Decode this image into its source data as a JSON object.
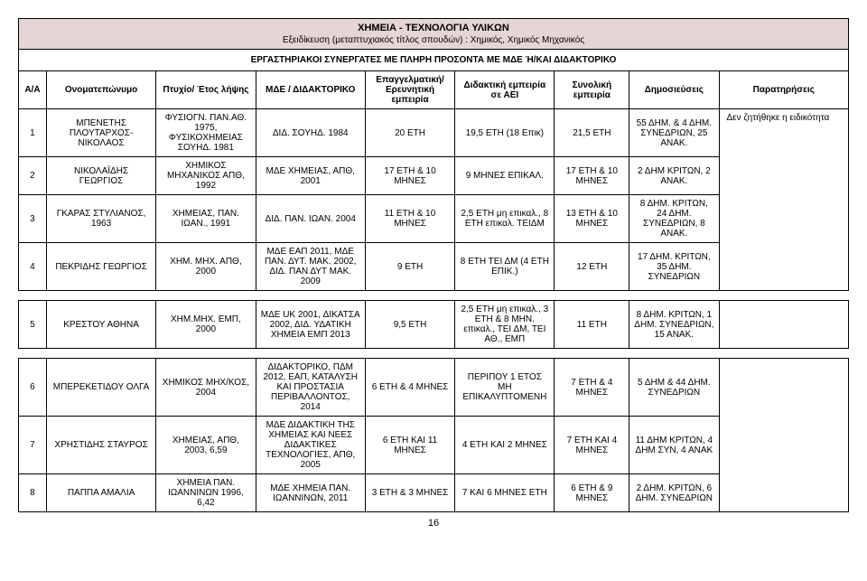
{
  "header": {
    "title": "ΧΗΜΕΙΑ - ΤΕΧΝΟΛΟΓΙΑ ΥΛΙΚΩΝ",
    "subtitle": "Εξειδίκευση (μεταπτυχιακός τίτλος σπουδών) : Χημικός, Χημικός Μηχανικός",
    "section": "ΕΡΓΑΣΤΗΡΙΑΚΟΙ ΣΥΝΕΡΓΑΤΕΣ ΜΕ ΠΛΗΡΗ ΠΡΟΣΟΝΤΑ ΜΕ ΜΔΕ Ή/ΚΑΙ ΔΙΔΑΚΤΟΡΙΚΟ"
  },
  "columns": {
    "aa": "Α/Α",
    "name": "Ονοματεπώνυμο",
    "degree": "Πτυχίο/ Έτος λήψης",
    "mde": "ΜΔΕ / ΔΙΔΑΚΤΟΡΙΚΟ",
    "prof": "Επαγγελματική/ Ερευνητική εμπειρία",
    "teach": "Διδακτική εμπειρία σε ΑΕΙ",
    "total": "Συνολική εμπειρία",
    "pub": "Δημοσιεύσεις",
    "notes": "Παρατηρήσεις"
  },
  "rows": [
    {
      "aa": "1",
      "name": "ΜΠΕΝΕΤΗΣ ΠΛΟΥΤΑΡΧΟΣ-ΝΙΚΟΛΑΟΣ",
      "degree": "ΦΥΣΙΟΓΝ. ΠΑΝ.ΑΘ. 1975, ΦΥΣΙΚΟΧΗΜΕΙΑΣ ΣΟΥΗΔ. 1981",
      "mde": "ΔΙΔ. ΣΟΥΗΔ. 1984",
      "prof": "20 ΕΤΗ",
      "teach": "19,5 ΕΤΗ (18 Επικ)",
      "total": "21,5 ΕΤΗ",
      "pub": "55 ΔΗΜ. & 4 ΔΗΜ. ΣΥΝΕΔΡΙΩΝ, 25 ΑΝΑΚ.",
      "notes": "Δεν ζητήθηκε η ειδικότητα"
    },
    {
      "aa": "2",
      "name": "ΝΙΚΟΛΑΪΔΗΣ ΓΕΩΡΓΙΟΣ",
      "degree": "ΧΗΜΙΚΟΣ ΜΗΧΑΝΙΚΟΣ ΑΠΘ, 1992",
      "mde": "ΜΔΕ ΧΗΜΕΙΑΣ, ΑΠΘ, 2001",
      "prof": "17 ΕΤΗ & 10 ΜΗΝΕΣ",
      "teach": "9 ΜΗΝΕΣ ΕΠΙΚΑΛ.",
      "total": "17 ΕΤΗ & 10 ΜΗΝΕΣ",
      "pub": "2 ΔΗΜ ΚΡΙΤΩΝ, 2 ΑΝΑΚ."
    },
    {
      "aa": "3",
      "name": "ΓΚΑΡΑΣ ΣΤΥΛΙΑΝΟΣ, 1963",
      "degree": "ΧΗΜΕΙΑΣ, ΠΑΝ. ΙΩΑΝ., 1991",
      "mde": "ΔΙΔ. ΠΑΝ. ΙΩΑΝ. 2004",
      "prof": "11 ΕΤΗ & 10 ΜΗΝΕΣ",
      "teach": "2,5 ΕΤΗ μη επικαλ., 8 ΕΤΗ επικαλ. ΤΕΙΔΜ",
      "total": "13 ΕΤΗ & 10 ΜΗΝΕΣ",
      "pub": "8 ΔΗΜ. ΚΡΙΤΩΝ, 24 ΔΗΜ. ΣΥΝΕΔΡΙΩΝ, 8 ΑΝΑΚ."
    },
    {
      "aa": "4",
      "name": "ΠΕΚΡΙΔΗΣ ΓΕΩΡΓΙΟΣ",
      "degree": "ΧΗΜ. ΜΗΧ. ΑΠΘ, 2000",
      "mde": "ΜΔΕ ΕΑΠ 2011, ΜΔΕ ΠΑΝ. ΔΥΤ. ΜΑΚ. 2002, ΔΙΔ. ΠΑΝ ΔΥΤ ΜΑΚ. 2009",
      "prof": "9 ΕΤΗ",
      "teach": "8 ΕΤΗ ΤΕΙ ΔΜ (4 ΕΤΗ ΕΠΙΚ.)",
      "total": "12 ΕΤΗ",
      "pub": "17 ΔΗΜ. ΚΡΙΤΩΝ, 35 ΔΗΜ. ΣΥΝΕΔΡΙΩΝ"
    },
    {
      "aa": "5",
      "name": "ΚΡΕΣΤΟΥ ΑΘΗΝΑ",
      "degree": "ΧΗΜ.ΜΗΧ. ΕΜΠ, 2000",
      "mde": "ΜΔΕ UK 2001, ΔΙΚΑΤΣΑ 2002, ΔΙΔ. ΥΔΑΤΙΚΗ ΧΗΜΕΙΑ ΕΜΠ 2013",
      "prof": "9,5 ΕΤΗ",
      "teach": "2,5 ΕΤΗ μη επικαλ., 3 ΕΤΗ & 8 ΜΗΝ. επικαλ., ΤΕΙ ΔΜ, ΤΕΙ ΑΘ., ΕΜΠ",
      "total": "11 ΕΤΗ",
      "pub": "8 ΔΗΜ. ΚΡΙΤΩΝ, 1 ΔΗΜ. ΣΥΝΕΔΡΙΩΝ, 15 ΑΝΑΚ."
    },
    {
      "aa": "6",
      "name": "ΜΠΕΡΕΚΕΤΙΔΟΥ ΟΛΓΑ",
      "degree": "ΧΗΜΙΚΟΣ ΜΗΧ/ΚΟΣ, 2004",
      "mde": "ΔΙΔΑΚΤΟΡΙΚΟ, ΠΔΜ 2012, ΕΑΠ, ΚΑΤΑΛΥΣΗ ΚΑΙ ΠΡΟΣΤΑΣΙΑ ΠΕΡΙΒΑΛΛΟΝΤΟΣ, 2014",
      "prof": "6 ΕΤΗ & 4 ΜΗΝΕΣ",
      "teach": "ΠΕΡΙΠΟΥ 1 ΕΤΟΣ ΜΗ ΕΠΙΚΑΛΥΠΤΟΜΕΝΗ",
      "total": "7 ΕΤΗ & 4 ΜΗΝΕΣ",
      "pub": "5 ΔΗΜ & 44 ΔΗΜ. ΣΥΝΕΔΡΙΩΝ"
    },
    {
      "aa": "7",
      "name": "ΧΡΗΣΤΙΔΗΣ ΣΤΑΥΡΟΣ",
      "degree": "ΧΗΜΕΙΑΣ, ΑΠΘ, 2003, 6,59",
      "mde": "ΜΔΕ ΔΙΔΑΚΤΙΚΗ ΤΗΣ ΧΗΜΕΙΑΣ ΚΑΙ ΝΕΕΣ ΔΙΔΑΚΤΙΚΕΣ ΤΕΧΝΟΛΟΓΙΕΣ, ΑΠΘ, 2005",
      "prof": "6 ΕΤΗ ΚΑΙ 11 ΜΗΝΕΣ",
      "teach": "4 ΕΤΗ ΚΑΙ 2 ΜΗΝΕΣ",
      "total": "7 ΕΤΗ ΚΑΙ 4 ΜΗΝΕΣ",
      "pub": "11 ΔΗΜ ΚΡΙΤΩΝ, 4 ΔΗΜ ΣΥΝ, 4 ΑΝΑΚ"
    },
    {
      "aa": "8",
      "name": "ΠΑΠΠΑ ΑΜΑΛΙΑ",
      "degree": "ΧΗΜΕΙΑ ΠΑΝ. ΙΩΑΝΝΙΝΩΝ 1996, 6,42",
      "mde": "ΜΔΕ ΧΗΜΕΙΑ ΠΑΝ. ΙΩΑΝΝΙΝΩΝ, 2011",
      "prof": "3 ΕΤΗ & 3 ΜΗΝΕΣ",
      "teach": "7 ΚΑΙ 6 ΜΗΝΕΣ ΕΤΗ",
      "total": "6 ΕΤΗ & 9 ΜΗΝΕΣ",
      "pub": "2 ΔΗΜ. ΚΡΙΤΩΝ, 6 ΔΗΜ. ΣΥΝΕΔΡΙΩΝ"
    }
  ],
  "pageNumber": "16"
}
